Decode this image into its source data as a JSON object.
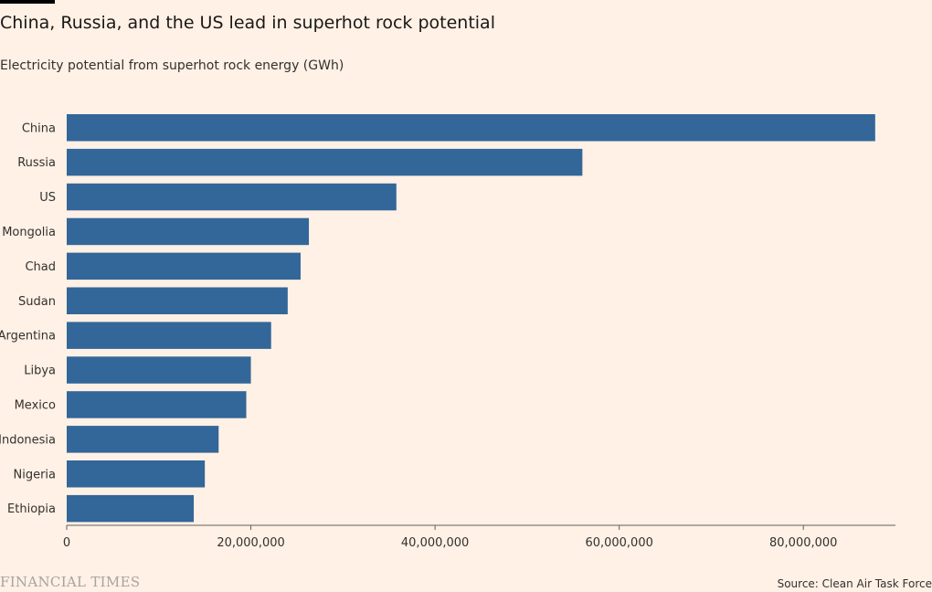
{
  "header": {
    "title": "China, Russia, and the US lead in superhot rock potential",
    "subtitle": "Electricity potential from superhot rock energy (GWh)"
  },
  "footer": {
    "brand": "FINANCIAL TIMES",
    "source": "Source: Clean Air Task Force"
  },
  "chart_data": {
    "type": "bar",
    "orientation": "horizontal",
    "categories": [
      "China",
      "Russia",
      "US",
      "Mongolia",
      "Chad",
      "Sudan",
      "Argentina",
      "Libya",
      "Mexico",
      "Indonesia",
      "Nigeria",
      "Ethiopia"
    ],
    "values": [
      87800000,
      56000000,
      35800000,
      26300000,
      25400000,
      24000000,
      22200000,
      20000000,
      19500000,
      16500000,
      15000000,
      13800000
    ],
    "x_ticks": [
      0,
      20000000,
      40000000,
      60000000,
      80000000
    ],
    "x_tick_labels": [
      "0",
      "20,000,000",
      "40,000,000",
      "60,000,000",
      "80,000,000"
    ],
    "xlim": [
      0,
      90000000
    ],
    "bar_color": "#336699",
    "grid": false
  }
}
